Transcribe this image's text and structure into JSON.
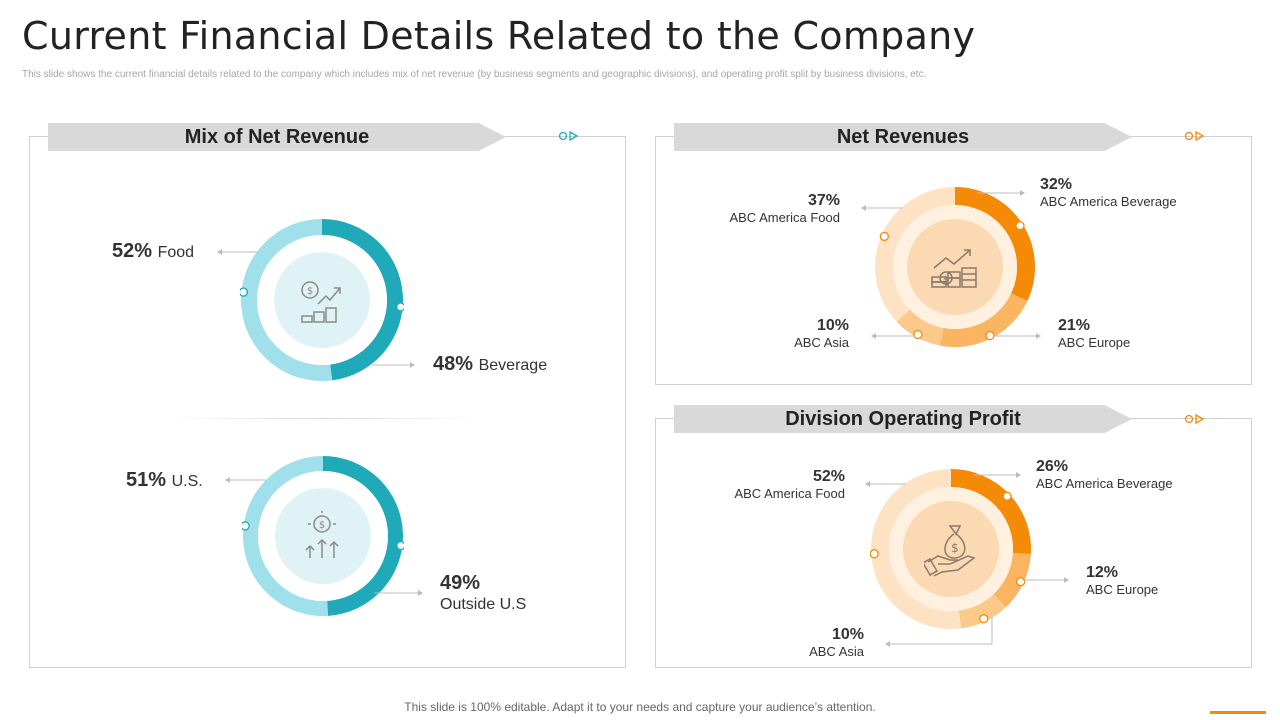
{
  "title": "Current Financial Details Related to the Company",
  "subtitle": "This slide shows the current financial details related to the company which includes mix of net revenue (by business segments and geographic divisions), and operating profit split by business divisions, etc.",
  "footer": "This slide is 100% editable. Adapt it to your needs and capture your audience’s attention.",
  "colors": {
    "teal_dark": "#20a9b8",
    "teal_light": "#9fe0ea",
    "orange": "#f58a07",
    "orange_mid": "#fbbd6e",
    "orange_light": "#fde3c4",
    "ribbon": "#d9d9d9"
  },
  "panels": {
    "mix": {
      "heading": "Mix of Net Revenue"
    },
    "net": {
      "heading": "Net Revenues"
    },
    "dop": {
      "heading": "Division Operating Profit"
    }
  },
  "chart_data": [
    {
      "type": "pie",
      "title": "",
      "labels": [
        "Food",
        "Beverage"
      ],
      "values": [
        52,
        48
      ],
      "display": [
        "52%",
        "48%"
      ]
    },
    {
      "type": "pie",
      "title": "",
      "labels": [
        "U.S.",
        "Outside U.S"
      ],
      "values": [
        51,
        49
      ],
      "display": [
        "51%",
        "49%"
      ]
    },
    {
      "type": "pie",
      "title": "Net Revenues",
      "labels": [
        "ABC America Beverage",
        "ABC Europe",
        "ABC Asia",
        "ABC America Food"
      ],
      "values": [
        32,
        21,
        10,
        37
      ],
      "display": [
        "32%",
        "21%",
        "10%",
        "37%"
      ]
    },
    {
      "type": "pie",
      "title": "Division Operating Profit",
      "labels": [
        "ABC America Beverage",
        "ABC Europe",
        "ABC Asia",
        "ABC America Food"
      ],
      "values": [
        26,
        12,
        10,
        52
      ],
      "display": [
        "26%",
        "12%",
        "10%",
        "52%"
      ]
    }
  ]
}
